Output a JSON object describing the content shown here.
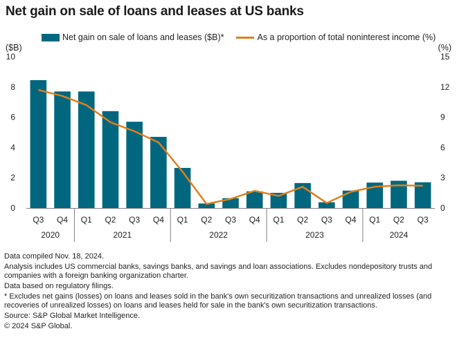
{
  "title": "Net gain on sale of loans and leases at US banks",
  "legend": {
    "bar_label": "Net gain on sale of loans and leases ($B)*",
    "line_label": "As a proportion of total noninterest income (%)"
  },
  "left_unit": "($B)",
  "right_unit": "(%)",
  "notes": [
    "Data compiled Nov. 18, 2024.",
    "Analysis includes US commercial banks, savings banks, and savings and loan associations. Excludes nondepository trusts and companies with a foreign banking organization charter.",
    "Data based on regulatory filings.",
    "* Excludes net gains (losses) on loans and leases sold in the bank's own securitization transactions and unrealized losses (and recoveries of unrealized losses) on loans and leases held for sale in the bank's own securitization transactions.",
    "Source: S&P Global Market Intelligence.",
    "© 2024 S&P Global."
  ],
  "colors": {
    "bar": "#00677f",
    "line": "#e07f1c",
    "axis": "#7f7f7f"
  },
  "chart_data": {
    "type": "bar",
    "title": "Net gain on sale of loans and leases at US banks",
    "categories": [
      "Q3",
      "Q4",
      "Q1",
      "Q2",
      "Q3",
      "Q4",
      "Q1",
      "Q2",
      "Q3",
      "Q4",
      "Q1",
      "Q2",
      "Q3",
      "Q4",
      "Q1",
      "Q2",
      "Q3"
    ],
    "groups": [
      {
        "label": "2020",
        "count": 2
      },
      {
        "label": "2021",
        "count": 4
      },
      {
        "label": "2022",
        "count": 4
      },
      {
        "label": "2023",
        "count": 4
      },
      {
        "label": "2024",
        "count": 3
      }
    ],
    "series": [
      {
        "name": "Net gain on sale of loans and leases ($B)*",
        "type": "bar",
        "axis": "left",
        "values": [
          8.45,
          7.7,
          7.7,
          6.4,
          5.7,
          4.7,
          2.65,
          0.3,
          0.65,
          1.1,
          1.0,
          1.65,
          0.38,
          1.15,
          1.68,
          1.8,
          1.7
        ]
      },
      {
        "name": "As a proportion of total noninterest income (%)",
        "type": "line",
        "axis": "right",
        "values": [
          11.7,
          11.1,
          10.2,
          8.5,
          7.6,
          6.5,
          3.6,
          0.4,
          0.9,
          1.7,
          1.2,
          2.1,
          0.5,
          1.6,
          2.1,
          2.25,
          2.2
        ]
      }
    ],
    "ylabel_left": "($B)",
    "ylabel_right": "(%)",
    "ylim_left": [
      0,
      10
    ],
    "ylim_right": [
      0,
      15
    ],
    "yticks_left": [
      0,
      2,
      4,
      6,
      8,
      10
    ],
    "yticks_right": [
      0,
      3,
      6,
      9,
      12,
      15
    ],
    "grid": false,
    "legend_position": "top"
  }
}
